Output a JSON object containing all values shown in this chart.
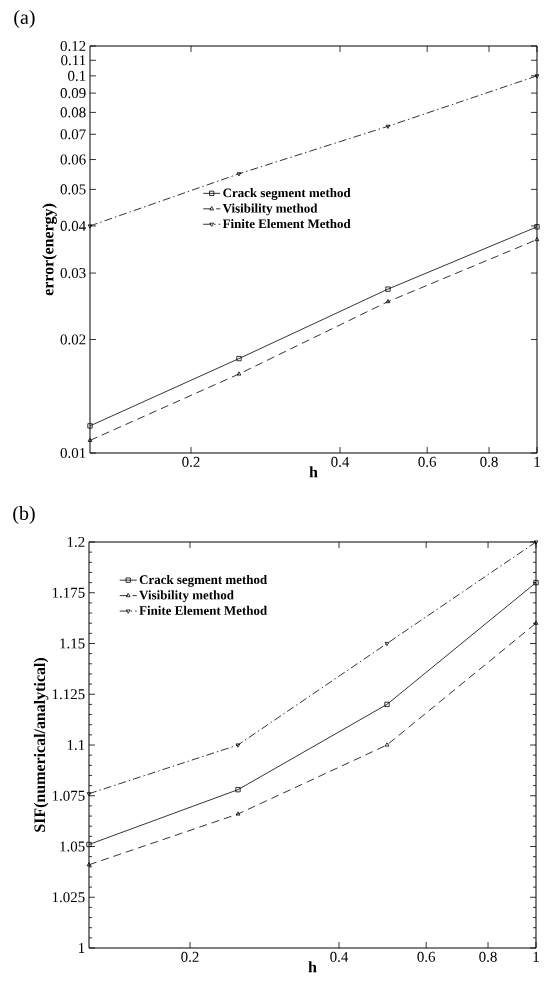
{
  "chart_data": [
    {
      "type": "line",
      "title": "(a)",
      "xlabel": "h",
      "ylabel": "error(energy)",
      "log": "xy",
      "legend": "center",
      "grid": false,
      "x": [
        0.125,
        0.25,
        0.5,
        1
      ],
      "xlim": [
        0.125,
        1
      ],
      "ylim": [
        0.01,
        0.12
      ],
      "xticks": [
        0.2,
        0.4,
        0.6,
        0.8,
        1
      ],
      "yticks": [
        0.01,
        0.02,
        0.03,
        0.04,
        0.05,
        0.06,
        0.07,
        0.08,
        0.09,
        0.1,
        0.11,
        0.12
      ],
      "series": [
        {
          "name": "Crack segment method",
          "color": "#000000",
          "marker": "square",
          "line_style": "solid",
          "values": [
            0.0118,
            0.0178,
            0.0272,
            0.0398
          ]
        },
        {
          "name": "Visibility method",
          "color": "#000000",
          "marker": "triangle",
          "line_style": "dashed",
          "values": [
            0.0108,
            0.0162,
            0.0252,
            0.0368
          ]
        },
        {
          "name": "Finite Element Method",
          "color": "#000000",
          "marker": "triangle-down",
          "line_style": "dashdot",
          "values": [
            0.04,
            0.055,
            0.0735,
            0.1
          ]
        }
      ]
    },
    {
      "type": "line",
      "title": "(b)",
      "xlabel": "h",
      "ylabel": "SIF(numerical/analytical)",
      "log": "x",
      "legend": "top left",
      "grid": false,
      "x": [
        0.125,
        0.25,
        0.5,
        1
      ],
      "xlim": [
        0.125,
        1
      ],
      "ylim": [
        1,
        1.2
      ],
      "xticks": [
        0.2,
        0.4,
        0.6,
        0.8,
        1
      ],
      "yticks": [
        1,
        1.025,
        1.05,
        1.075,
        1.1,
        1.125,
        1.15,
        1.175,
        1.2
      ],
      "series": [
        {
          "name": "Crack segment method",
          "color": "#000000",
          "marker": "square",
          "line_style": "solid",
          "values": [
            1.051,
            1.078,
            1.12,
            1.18
          ]
        },
        {
          "name": "Visibility method",
          "color": "#000000",
          "marker": "triangle",
          "line_style": "dashed",
          "values": [
            1.041,
            1.066,
            1.1,
            1.16
          ]
        },
        {
          "name": "Finite Element Method",
          "color": "#000000",
          "marker": "triangle-down",
          "line_style": "dashdot",
          "values": [
            1.076,
            1.1,
            1.15,
            1.2
          ]
        }
      ]
    }
  ]
}
